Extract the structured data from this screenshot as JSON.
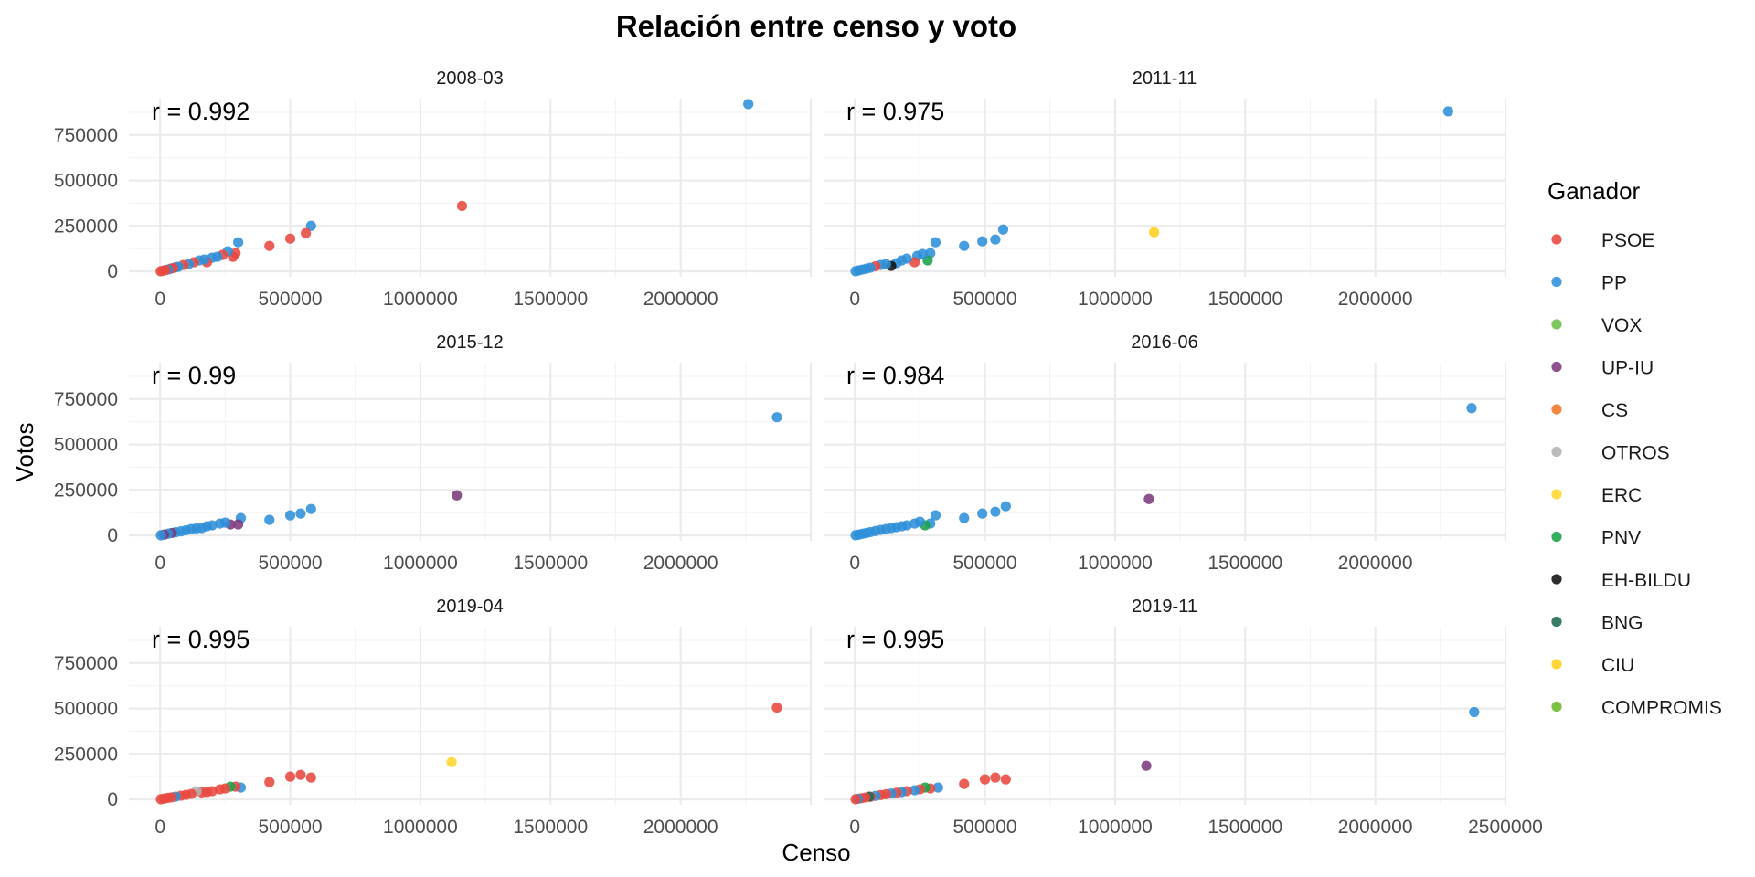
{
  "chart_data": {
    "type": "scatter",
    "title": "Relación entre censo y voto",
    "xlabel": "Censo",
    "ylabel": "Votos",
    "xlim": [
      -120000,
      2500000
    ],
    "ylim": [
      -30000,
      950000
    ],
    "x_ticks": [
      "0",
      "500000",
      "1000000",
      "1500000",
      "2000000",
      "2500000"
    ],
    "y_ticks": [
      "0",
      "250000",
      "500000",
      "750000"
    ],
    "grid": true,
    "legend": {
      "title": "Ganador",
      "position": "right",
      "items": [
        {
          "name": "PSOE",
          "color": "#e8483f"
        },
        {
          "name": "PP",
          "color": "#2d8fd8"
        },
        {
          "name": "VOX",
          "color": "#6cc04a"
        },
        {
          "name": "UP-IU",
          "color": "#7b3a7c"
        },
        {
          "name": "CS",
          "color": "#f07727"
        },
        {
          "name": "OTROS",
          "color": "#b3b3b3"
        },
        {
          "name": "ERC",
          "color": "#ffd62c"
        },
        {
          "name": "PNV",
          "color": "#1aa34a"
        },
        {
          "name": "EH-BILDU",
          "color": "#111111"
        },
        {
          "name": "BNG",
          "color": "#1e6b52"
        },
        {
          "name": "CIU",
          "color": "#ffd21f"
        },
        {
          "name": "COMPROMIS",
          "color": "#6ab82e"
        }
      ]
    },
    "panels": [
      {
        "label": "2008-03",
        "r": "r = 0.992",
        "points": [
          {
            "x": 2260000,
            "y": 920000,
            "party": "PP"
          },
          {
            "x": 1160000,
            "y": 360000,
            "party": "PSOE"
          },
          {
            "x": 580000,
            "y": 250000,
            "party": "PP"
          },
          {
            "x": 500000,
            "y": 180000,
            "party": "PSOE"
          },
          {
            "x": 560000,
            "y": 210000,
            "party": "PSOE"
          },
          {
            "x": 420000,
            "y": 140000,
            "party": "PSOE"
          },
          {
            "x": 300000,
            "y": 160000,
            "party": "PP"
          },
          {
            "x": 290000,
            "y": 100000,
            "party": "PSOE"
          },
          {
            "x": 280000,
            "y": 80000,
            "party": "PSOE"
          },
          {
            "x": 260000,
            "y": 110000,
            "party": "PP"
          },
          {
            "x": 240000,
            "y": 90000,
            "party": "PSOE"
          },
          {
            "x": 220000,
            "y": 80000,
            "party": "PP"
          },
          {
            "x": 200000,
            "y": 75000,
            "party": "PP"
          },
          {
            "x": 180000,
            "y": 50000,
            "party": "PSOE"
          },
          {
            "x": 170000,
            "y": 65000,
            "party": "PP"
          },
          {
            "x": 150000,
            "y": 60000,
            "party": "PP"
          },
          {
            "x": 130000,
            "y": 50000,
            "party": "PSOE"
          },
          {
            "x": 110000,
            "y": 40000,
            "party": "PP"
          },
          {
            "x": 90000,
            "y": 35000,
            "party": "PSOE"
          },
          {
            "x": 70000,
            "y": 25000,
            "party": "PP"
          },
          {
            "x": 60000,
            "y": 22000,
            "party": "PP"
          },
          {
            "x": 50000,
            "y": 18000,
            "party": "PSOE"
          },
          {
            "x": 40000,
            "y": 14000,
            "party": "PSOE"
          },
          {
            "x": 30000,
            "y": 10000,
            "party": "PP"
          },
          {
            "x": 20000,
            "y": 7000,
            "party": "PSOE"
          },
          {
            "x": 10000,
            "y": 3000,
            "party": "PSOE"
          },
          {
            "x": 2000,
            "y": 500,
            "party": "PSOE"
          }
        ]
      },
      {
        "label": "2011-11",
        "r": "r = 0.975",
        "points": [
          {
            "x": 2280000,
            "y": 880000,
            "party": "PP"
          },
          {
            "x": 1150000,
            "y": 215000,
            "party": "CIU"
          },
          {
            "x": 570000,
            "y": 230000,
            "party": "PP"
          },
          {
            "x": 540000,
            "y": 175000,
            "party": "PP"
          },
          {
            "x": 490000,
            "y": 165000,
            "party": "PP"
          },
          {
            "x": 420000,
            "y": 140000,
            "party": "PP"
          },
          {
            "x": 310000,
            "y": 160000,
            "party": "PP"
          },
          {
            "x": 290000,
            "y": 100000,
            "party": "PP"
          },
          {
            "x": 280000,
            "y": 60000,
            "party": "PNV"
          },
          {
            "x": 260000,
            "y": 95000,
            "party": "PP"
          },
          {
            "x": 240000,
            "y": 85000,
            "party": "PP"
          },
          {
            "x": 230000,
            "y": 50000,
            "party": "PSOE"
          },
          {
            "x": 200000,
            "y": 70000,
            "party": "PP"
          },
          {
            "x": 180000,
            "y": 60000,
            "party": "PP"
          },
          {
            "x": 160000,
            "y": 45000,
            "party": "PP"
          },
          {
            "x": 140000,
            "y": 30000,
            "party": "EH-BILDU"
          },
          {
            "x": 120000,
            "y": 40000,
            "party": "PP"
          },
          {
            "x": 100000,
            "y": 35000,
            "party": "PP"
          },
          {
            "x": 80000,
            "y": 28000,
            "party": "PSOE"
          },
          {
            "x": 60000,
            "y": 20000,
            "party": "PP"
          },
          {
            "x": 45000,
            "y": 15000,
            "party": "PP"
          },
          {
            "x": 30000,
            "y": 10000,
            "party": "PP"
          },
          {
            "x": 15000,
            "y": 5000,
            "party": "PP"
          },
          {
            "x": 3000,
            "y": 800,
            "party": "PP"
          }
        ]
      },
      {
        "label": "2015-12",
        "r": "r = 0.99",
        "points": [
          {
            "x": 2370000,
            "y": 650000,
            "party": "PP"
          },
          {
            "x": 1140000,
            "y": 220000,
            "party": "UP-IU"
          },
          {
            "x": 580000,
            "y": 145000,
            "party": "PP"
          },
          {
            "x": 540000,
            "y": 120000,
            "party": "PP"
          },
          {
            "x": 500000,
            "y": 110000,
            "party": "PP"
          },
          {
            "x": 420000,
            "y": 85000,
            "party": "PP"
          },
          {
            "x": 310000,
            "y": 95000,
            "party": "PP"
          },
          {
            "x": 300000,
            "y": 60000,
            "party": "UP-IU"
          },
          {
            "x": 270000,
            "y": 60000,
            "party": "UP-IU"
          },
          {
            "x": 250000,
            "y": 70000,
            "party": "PP"
          },
          {
            "x": 230000,
            "y": 65000,
            "party": "PP"
          },
          {
            "x": 200000,
            "y": 55000,
            "party": "PP"
          },
          {
            "x": 180000,
            "y": 50000,
            "party": "PP"
          },
          {
            "x": 160000,
            "y": 40000,
            "party": "PP"
          },
          {
            "x": 140000,
            "y": 38000,
            "party": "PP"
          },
          {
            "x": 120000,
            "y": 35000,
            "party": "PP"
          },
          {
            "x": 100000,
            "y": 28000,
            "party": "PP"
          },
          {
            "x": 80000,
            "y": 22000,
            "party": "PP"
          },
          {
            "x": 60000,
            "y": 17000,
            "party": "PP"
          },
          {
            "x": 45000,
            "y": 13000,
            "party": "UP-IU"
          },
          {
            "x": 30000,
            "y": 9000,
            "party": "PP"
          },
          {
            "x": 15000,
            "y": 4000,
            "party": "UP-IU"
          },
          {
            "x": 3000,
            "y": 700,
            "party": "PP"
          }
        ]
      },
      {
        "label": "2016-06",
        "r": "r = 0.984",
        "points": [
          {
            "x": 2370000,
            "y": 700000,
            "party": "PP"
          },
          {
            "x": 1130000,
            "y": 200000,
            "party": "UP-IU"
          },
          {
            "x": 580000,
            "y": 160000,
            "party": "PP"
          },
          {
            "x": 540000,
            "y": 130000,
            "party": "PP"
          },
          {
            "x": 490000,
            "y": 120000,
            "party": "PP"
          },
          {
            "x": 420000,
            "y": 95000,
            "party": "PP"
          },
          {
            "x": 310000,
            "y": 110000,
            "party": "PP"
          },
          {
            "x": 290000,
            "y": 65000,
            "party": "PP"
          },
          {
            "x": 270000,
            "y": 55000,
            "party": "PNV"
          },
          {
            "x": 250000,
            "y": 75000,
            "party": "PP"
          },
          {
            "x": 230000,
            "y": 65000,
            "party": "PP"
          },
          {
            "x": 200000,
            "y": 55000,
            "party": "PP"
          },
          {
            "x": 180000,
            "y": 50000,
            "party": "PP"
          },
          {
            "x": 160000,
            "y": 45000,
            "party": "PP"
          },
          {
            "x": 140000,
            "y": 40000,
            "party": "PP"
          },
          {
            "x": 120000,
            "y": 35000,
            "party": "PP"
          },
          {
            "x": 100000,
            "y": 30000,
            "party": "PP"
          },
          {
            "x": 80000,
            "y": 24000,
            "party": "PP"
          },
          {
            "x": 60000,
            "y": 18000,
            "party": "PP"
          },
          {
            "x": 45000,
            "y": 13000,
            "party": "PP"
          },
          {
            "x": 30000,
            "y": 9000,
            "party": "PP"
          },
          {
            "x": 15000,
            "y": 4000,
            "party": "PP"
          },
          {
            "x": 3000,
            "y": 700,
            "party": "PP"
          }
        ]
      },
      {
        "label": "2019-04",
        "r": "r = 0.995",
        "points": [
          {
            "x": 2370000,
            "y": 505000,
            "party": "PSOE"
          },
          {
            "x": 1120000,
            "y": 205000,
            "party": "ERC"
          },
          {
            "x": 580000,
            "y": 120000,
            "party": "PSOE"
          },
          {
            "x": 540000,
            "y": 135000,
            "party": "PSOE"
          },
          {
            "x": 500000,
            "y": 125000,
            "party": "PSOE"
          },
          {
            "x": 420000,
            "y": 95000,
            "party": "PSOE"
          },
          {
            "x": 310000,
            "y": 65000,
            "party": "PP"
          },
          {
            "x": 290000,
            "y": 70000,
            "party": "PSOE"
          },
          {
            "x": 270000,
            "y": 70000,
            "party": "PNV"
          },
          {
            "x": 250000,
            "y": 60000,
            "party": "PSOE"
          },
          {
            "x": 230000,
            "y": 55000,
            "party": "PSOE"
          },
          {
            "x": 200000,
            "y": 45000,
            "party": "PSOE"
          },
          {
            "x": 180000,
            "y": 40000,
            "party": "PSOE"
          },
          {
            "x": 160000,
            "y": 38000,
            "party": "PSOE"
          },
          {
            "x": 140000,
            "y": 45000,
            "party": "OTROS"
          },
          {
            "x": 120000,
            "y": 30000,
            "party": "PSOE"
          },
          {
            "x": 100000,
            "y": 25000,
            "party": "PSOE"
          },
          {
            "x": 80000,
            "y": 20000,
            "party": "PSOE"
          },
          {
            "x": 60000,
            "y": 15000,
            "party": "PP"
          },
          {
            "x": 45000,
            "y": 11000,
            "party": "PSOE"
          },
          {
            "x": 30000,
            "y": 8000,
            "party": "PSOE"
          },
          {
            "x": 15000,
            "y": 4000,
            "party": "PSOE"
          },
          {
            "x": 3000,
            "y": 700,
            "party": "PSOE"
          }
        ]
      },
      {
        "label": "2019-11",
        "r": "r = 0.995",
        "points": [
          {
            "x": 2380000,
            "y": 480000,
            "party": "PP"
          },
          {
            "x": 1120000,
            "y": 185000,
            "party": "UP-IU"
          },
          {
            "x": 580000,
            "y": 110000,
            "party": "PSOE"
          },
          {
            "x": 540000,
            "y": 120000,
            "party": "PSOE"
          },
          {
            "x": 500000,
            "y": 110000,
            "party": "PSOE"
          },
          {
            "x": 420000,
            "y": 85000,
            "party": "PSOE"
          },
          {
            "x": 320000,
            "y": 65000,
            "party": "PP"
          },
          {
            "x": 290000,
            "y": 60000,
            "party": "PSOE"
          },
          {
            "x": 270000,
            "y": 65000,
            "party": "PNV"
          },
          {
            "x": 250000,
            "y": 55000,
            "party": "PSOE"
          },
          {
            "x": 230000,
            "y": 50000,
            "party": "PP"
          },
          {
            "x": 200000,
            "y": 45000,
            "party": "PSOE"
          },
          {
            "x": 180000,
            "y": 40000,
            "party": "PP"
          },
          {
            "x": 160000,
            "y": 36000,
            "party": "PSOE"
          },
          {
            "x": 140000,
            "y": 32000,
            "party": "PP"
          },
          {
            "x": 120000,
            "y": 28000,
            "party": "PSOE"
          },
          {
            "x": 100000,
            "y": 24000,
            "party": "PSOE"
          },
          {
            "x": 80000,
            "y": 19000,
            "party": "PP"
          },
          {
            "x": 60000,
            "y": 14000,
            "party": "PSOE"
          },
          {
            "x": 55000,
            "y": 15000,
            "party": "BNG"
          },
          {
            "x": 40000,
            "y": 10000,
            "party": "PSOE"
          },
          {
            "x": 25000,
            "y": 6000,
            "party": "PSOE"
          },
          {
            "x": 12000,
            "y": 3000,
            "party": "PP"
          },
          {
            "x": 3000,
            "y": 700,
            "party": "PSOE"
          }
        ]
      }
    ]
  }
}
